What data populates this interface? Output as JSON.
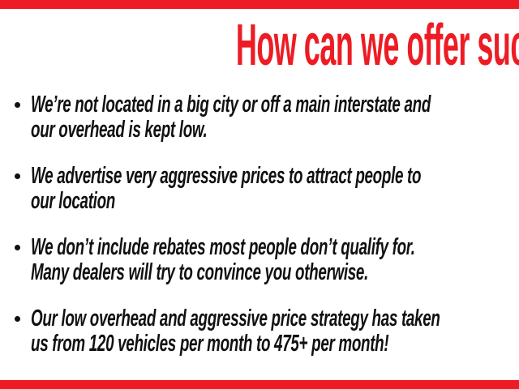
{
  "slide": {
    "title": "How can we offer such low prices?",
    "accent_color": "#ed1c24",
    "text_color": "#111111",
    "background_color": "#ffffff"
  },
  "bullets": [
    {
      "lines": [
        "We’re not located in a big city or off a main interstate and",
        "our overhead is kept low."
      ]
    },
    {
      "lines": [
        "We advertise very aggressive prices to attract people to",
        "our location"
      ]
    },
    {
      "lines": [
        "We don’t include rebates most people don’t qualify for.",
        "Many dealers will try to convince you otherwise."
      ]
    },
    {
      "lines": [
        "Our low overhead and aggressive price strategy has taken",
        "us from 120 vehicles per month to 475+ per month!"
      ]
    }
  ]
}
